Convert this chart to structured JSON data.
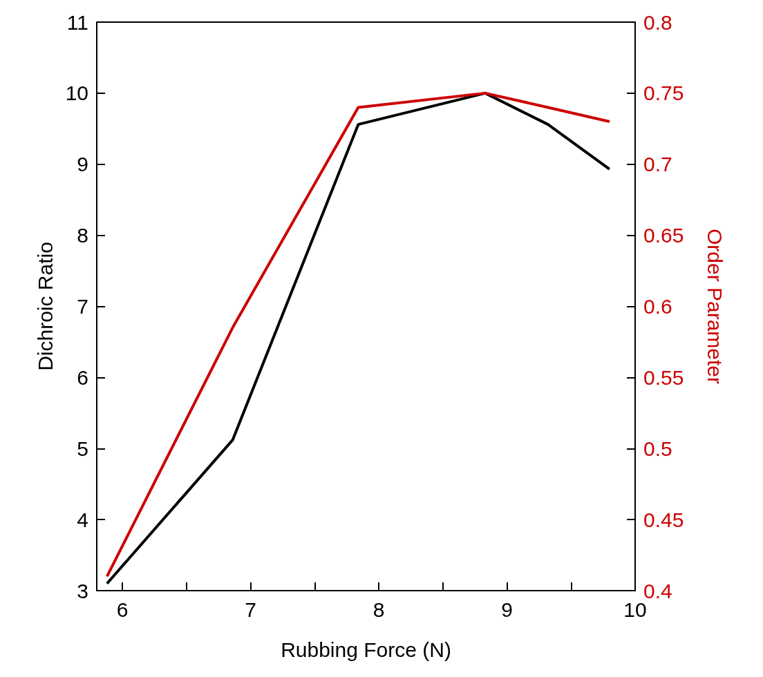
{
  "chart_data": {
    "type": "line",
    "xlabel": "Rubbing Force (N)",
    "ylabel": "Dichroic Ratio",
    "y2label": "Order Parameter",
    "x": [
      5.88,
      6.86,
      7.84,
      8.83,
      9.32,
      9.8
    ],
    "series": [
      {
        "color": "#000000",
        "values": [
          3.1,
          5.12,
          9.56,
          10.0,
          9.56,
          8.93
        ]
      },
      {
        "color": "#cc0000",
        "axis": "y2",
        "values": [
          0.41,
          0.585,
          0.74,
          0.75,
          0.74,
          0.73
        ]
      }
    ],
    "xlim": [
      5.8,
      10
    ],
    "xticks": [
      6,
      {
        "value": 6.5,
        "label": null
      },
      7,
      {
        "value": 7.5,
        "label": null
      },
      8,
      {
        "value": 8.5,
        "label": null
      },
      9,
      {
        "value": 9.5,
        "label": null
      },
      10
    ],
    "ylim": [
      3,
      11
    ],
    "yticks": [
      3,
      4,
      5,
      6,
      7,
      8,
      9,
      10,
      11
    ],
    "y2lim": [
      0.4,
      0.8
    ],
    "y2ticks": [
      0.4,
      0.45,
      0.5,
      0.55,
      0.6,
      0.65,
      0.7,
      0.75,
      0.8
    ],
    "grid": false,
    "legend": false,
    "marker": "none",
    "line_style": "solid"
  }
}
